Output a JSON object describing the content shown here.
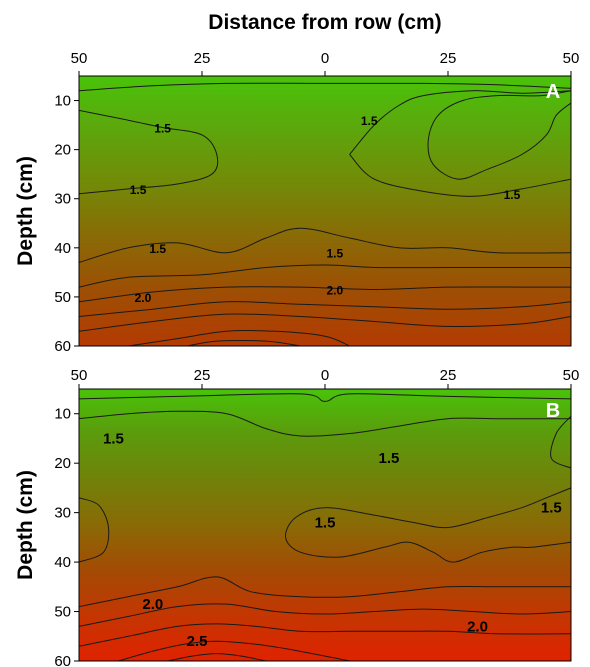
{
  "figure": {
    "x_axis_title": "Distance from row (cm)",
    "y_axis_title": "Depth (cm)"
  },
  "chart_data": [
    {
      "type": "heatmap",
      "panel_label": "A",
      "xlabel": "Distance from row (cm)",
      "ylabel": "Depth (cm)",
      "x_tick_labels": [
        "50",
        "25",
        "0",
        "25",
        "50"
      ],
      "x_tick_values": [
        -50,
        -25,
        0,
        25,
        50
      ],
      "y_tick_labels": [
        "10",
        "20",
        "30",
        "40",
        "50",
        "60"
      ],
      "y_tick_values": [
        10,
        20,
        30,
        40,
        50,
        60
      ],
      "xlim": [
        -50,
        50
      ],
      "ylim": [
        5,
        60
      ],
      "y_inverted": true,
      "colormap": [
        "#49c30a",
        "#5da60c",
        "#738a08",
        "#8a6a06",
        "#9e4e04",
        "#b33b02"
      ],
      "contour_interval": 0.1,
      "contours": [
        {
          "name": "c1",
          "points": [
            [
              -50,
              8
            ],
            [
              -35,
              7
            ],
            [
              -20,
              6.5
            ],
            [
              0,
              6.5
            ],
            [
              20,
              6.5
            ],
            [
              35,
              6.8
            ],
            [
              50,
              7.5
            ]
          ]
        },
        {
          "name": "c2",
          "points": [
            [
              -50,
              12
            ],
            [
              -40,
              14
            ],
            [
              -33,
              15.5
            ],
            [
              -25,
              17
            ],
            [
              -22,
              21
            ],
            [
              -23,
              25
            ],
            [
              -30,
              27
            ],
            [
              -40,
              28
            ],
            [
              -50,
              29
            ]
          ]
        },
        {
          "name": "c3",
          "points": [
            [
              5,
              21
            ],
            [
              10,
              15
            ],
            [
              15,
              11
            ],
            [
              20,
              9
            ],
            [
              30,
              8
            ],
            [
              40,
              8.5
            ],
            [
              50,
              8
            ]
          ]
        },
        {
          "name": "c4",
          "points": [
            [
              50,
              10.5
            ],
            [
              47,
              13
            ],
            [
              45,
              17
            ],
            [
              40,
              21
            ],
            [
              33,
              24
            ],
            [
              27,
              26
            ],
            [
              22,
              23
            ],
            [
              21,
              18
            ],
            [
              23,
              13
            ],
            [
              28,
              10
            ],
            [
              35,
              9
            ],
            [
              44,
              9
            ],
            [
              50,
              8
            ]
          ]
        },
        {
          "name": "c5",
          "points": [
            [
              5,
              21
            ],
            [
              10,
              26
            ],
            [
              20,
              28.5
            ],
            [
              30,
              29.5
            ],
            [
              40,
              28
            ],
            [
              50,
              26
            ]
          ]
        },
        {
          "name": "c6",
          "points": [
            [
              -50,
              43
            ],
            [
              -40,
              40
            ],
            [
              -30,
              39
            ],
            [
              -20,
              41
            ],
            [
              -12,
              38
            ],
            [
              -5,
              36
            ],
            [
              5,
              38
            ],
            [
              15,
              40
            ],
            [
              25,
              40
            ],
            [
              35,
              41
            ],
            [
              50,
              41
            ]
          ]
        },
        {
          "name": "c7",
          "points": [
            [
              -50,
              48
            ],
            [
              -40,
              46
            ],
            [
              -25,
              45.5
            ],
            [
              -12,
              44
            ],
            [
              0,
              43.5
            ],
            [
              10,
              44
            ],
            [
              25,
              44
            ],
            [
              40,
              44
            ],
            [
              50,
              44
            ]
          ]
        },
        {
          "name": "c8",
          "points": [
            [
              -50,
              51
            ],
            [
              -35,
              49
            ],
            [
              -20,
              48
            ],
            [
              -5,
              48
            ],
            [
              10,
              48.5
            ],
            [
              25,
              48
            ],
            [
              40,
              48
            ],
            [
              50,
              48
            ]
          ]
        },
        {
          "name": "c9",
          "points": [
            [
              -50,
              54
            ],
            [
              -35,
              52.5
            ],
            [
              -20,
              51
            ],
            [
              -5,
              51.5
            ],
            [
              10,
              52
            ],
            [
              25,
              52.5
            ],
            [
              40,
              52
            ],
            [
              50,
              51
            ]
          ]
        },
        {
          "name": "c10",
          "points": [
            [
              -50,
              57
            ],
            [
              -35,
              55
            ],
            [
              -20,
              53.5
            ],
            [
              -5,
              54
            ],
            [
              10,
              55
            ],
            [
              25,
              56
            ],
            [
              40,
              55.5
            ],
            [
              50,
              54
            ]
          ]
        },
        {
          "name": "c11",
          "points": [
            [
              -40,
              60
            ],
            [
              -30,
              58.5
            ],
            [
              -20,
              57
            ],
            [
              -10,
              57
            ],
            [
              0,
              58
            ],
            [
              5,
              60
            ]
          ]
        },
        {
          "name": "c12",
          "points": [
            [
              -28,
              60
            ],
            [
              -22,
              59
            ],
            [
              -12,
              59
            ],
            [
              -5,
              60
            ]
          ]
        }
      ],
      "contour_labels": [
        {
          "text": "1.5",
          "x": -33,
          "y": 15.5
        },
        {
          "text": "1.5",
          "x": 9,
          "y": 14
        },
        {
          "text": "1.5",
          "x": -38,
          "y": 28
        },
        {
          "text": "1.5",
          "x": 38,
          "y": 29
        },
        {
          "text": "1.5",
          "x": -34,
          "y": 40
        },
        {
          "text": "1.5",
          "x": 2,
          "y": 41
        },
        {
          "text": "2.0",
          "x": -37,
          "y": 50
        },
        {
          "text": "2.0",
          "x": 2,
          "y": 48.5
        }
      ]
    },
    {
      "type": "heatmap",
      "panel_label": "B",
      "xlabel": "",
      "ylabel": "Depth (cm)",
      "x_tick_labels": [
        "50",
        "25",
        "0",
        "25",
        "50"
      ],
      "x_tick_values": [
        -50,
        -25,
        0,
        25,
        50
      ],
      "y_tick_labels": [
        "10",
        "20",
        "30",
        "40",
        "50",
        "60"
      ],
      "y_tick_values": [
        10,
        20,
        30,
        40,
        50,
        60
      ],
      "xlim": [
        -50,
        50
      ],
      "ylim": [
        5,
        60
      ],
      "y_inverted": true,
      "colormap": [
        "#49c30a",
        "#5c9a0c",
        "#71820a",
        "#8a6a06",
        "#a34b04",
        "#c43602",
        "#e02200"
      ],
      "contour_interval": 0.25,
      "contours": [
        {
          "name": "c1",
          "points": [
            [
              -50,
              7
            ],
            [
              -30,
              6.5
            ],
            [
              -5,
              6
            ],
            [
              0,
              7.5
            ],
            [
              5,
              6
            ],
            [
              25,
              6.5
            ],
            [
              50,
              7
            ]
          ]
        },
        {
          "name": "c2",
          "points": [
            [
              -50,
              11
            ],
            [
              -40,
              10
            ],
            [
              -30,
              9.5
            ],
            [
              -20,
              10
            ],
            [
              -12,
              13
            ],
            [
              -5,
              14.5
            ],
            [
              5,
              14
            ],
            [
              15,
              12.5
            ],
            [
              25,
              11
            ],
            [
              35,
              11
            ],
            [
              45,
              11
            ],
            [
              50,
              11
            ]
          ]
        },
        {
          "name": "c3",
          "points": [
            [
              50,
              10.5
            ],
            [
              47,
              14
            ],
            [
              46,
              19
            ],
            [
              50,
              21
            ]
          ]
        },
        {
          "name": "c4",
          "points": [
            [
              -50,
              27
            ],
            [
              -46,
              28.5
            ],
            [
              -44,
              33
            ],
            [
              -45,
              38
            ],
            [
              -50,
              40
            ]
          ]
        },
        {
          "name": "c5",
          "points": [
            [
              50,
              25
            ],
            [
              45,
              27
            ],
            [
              40,
              29
            ],
            [
              33,
              31
            ],
            [
              25,
              33
            ],
            [
              18,
              32
            ],
            [
              10,
              30.5
            ],
            [
              0,
              29
            ],
            [
              -6,
              31
            ],
            [
              -8,
              35
            ],
            [
              -5,
              38
            ],
            [
              3,
              39
            ],
            [
              12,
              37
            ],
            [
              17,
              36
            ],
            [
              22,
              38
            ],
            [
              26,
              40
            ],
            [
              32,
              38
            ],
            [
              38,
              37
            ],
            [
              42,
              37
            ],
            [
              50,
              36
            ]
          ]
        },
        {
          "name": "c6",
          "points": [
            [
              -50,
              49
            ],
            [
              -40,
              47
            ],
            [
              -30,
              45
            ],
            [
              -22,
              43
            ],
            [
              -15,
              46
            ],
            [
              -5,
              47
            ],
            [
              5,
              47
            ],
            [
              15,
              46
            ],
            [
              25,
              45
            ],
            [
              35,
              45
            ],
            [
              45,
              45
            ],
            [
              50,
              45
            ]
          ]
        },
        {
          "name": "c7",
          "points": [
            [
              -50,
              53
            ],
            [
              -40,
              51
            ],
            [
              -30,
              49
            ],
            [
              -20,
              48.5
            ],
            [
              -10,
              50
            ],
            [
              0,
              50.5
            ],
            [
              10,
              50
            ],
            [
              20,
              49.5
            ],
            [
              30,
              50
            ],
            [
              40,
              50.5
            ],
            [
              50,
              50
            ]
          ]
        },
        {
          "name": "c8",
          "points": [
            [
              -50,
              57
            ],
            [
              -40,
              55
            ],
            [
              -30,
              53
            ],
            [
              -22,
              52.5
            ],
            [
              -14,
              53
            ],
            [
              -5,
              54
            ],
            [
              5,
              54
            ],
            [
              15,
              54
            ],
            [
              25,
              54
            ],
            [
              35,
              54.5
            ],
            [
              50,
              54.5
            ]
          ]
        },
        {
          "name": "c9",
          "points": [
            [
              -42,
              60
            ],
            [
              -35,
              58
            ],
            [
              -28,
              56.5
            ],
            [
              -22,
              56
            ],
            [
              -15,
              56.5
            ],
            [
              -8,
              57.5
            ],
            [
              0,
              59
            ],
            [
              5,
              60
            ]
          ]
        },
        {
          "name": "c10",
          "points": [
            [
              -32,
              60
            ],
            [
              -27,
              59
            ],
            [
              -22,
              58.5
            ],
            [
              -17,
              59
            ],
            [
              -12,
              60
            ]
          ]
        }
      ],
      "contour_labels": [
        {
          "text": "1.5",
          "x": -43,
          "y": 15
        },
        {
          "text": "1.5",
          "x": 13,
          "y": 19
        },
        {
          "text": "1.5",
          "x": 0,
          "y": 32
        },
        {
          "text": "1.5",
          "x": 46,
          "y": 29
        },
        {
          "text": "2.0",
          "x": -35,
          "y": 48.5
        },
        {
          "text": "2.0",
          "x": 31,
          "y": 53
        },
        {
          "text": "2.5",
          "x": -26,
          "y": 56
        }
      ]
    }
  ]
}
